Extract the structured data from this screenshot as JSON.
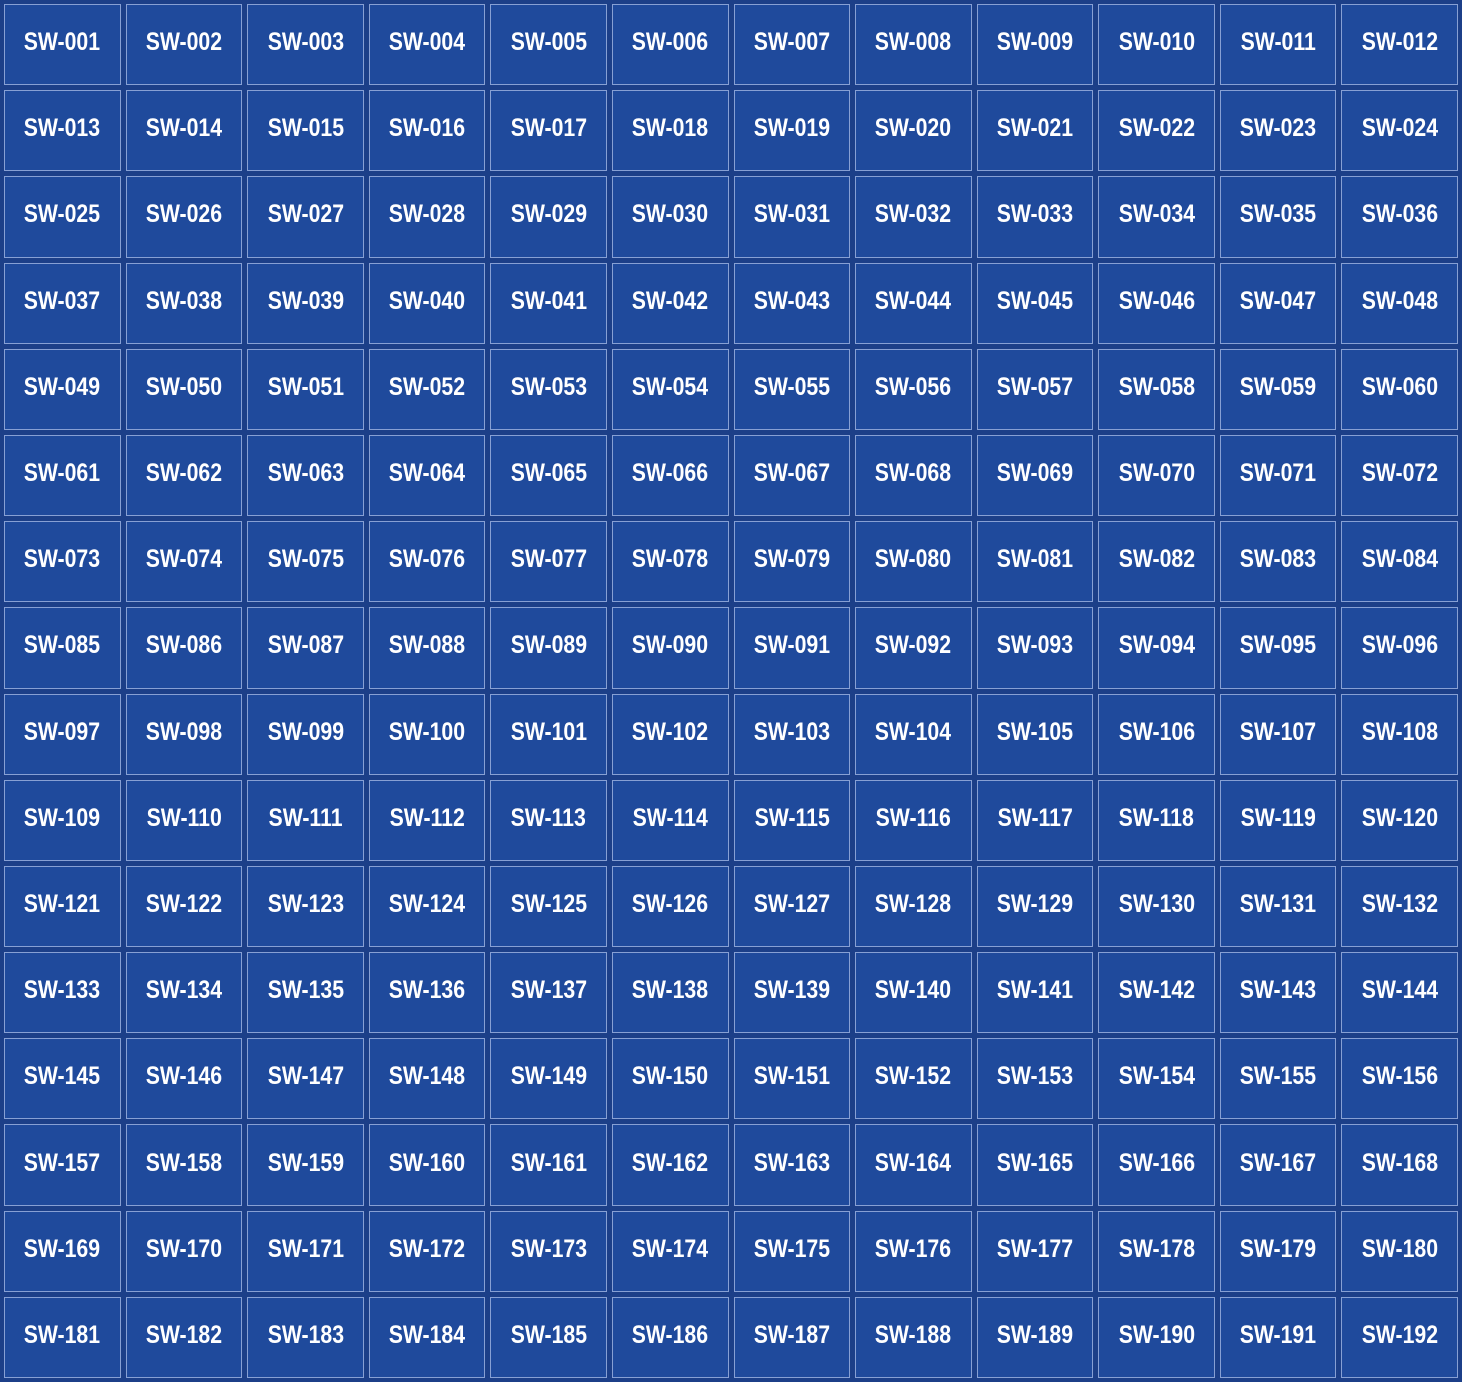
{
  "grid": {
    "columns": 12,
    "rows": 16,
    "cells": [
      "SW-001",
      "SW-002",
      "SW-003",
      "SW-004",
      "SW-005",
      "SW-006",
      "SW-007",
      "SW-008",
      "SW-009",
      "SW-010",
      "SW-011",
      "SW-012",
      "SW-013",
      "SW-014",
      "SW-015",
      "SW-016",
      "SW-017",
      "SW-018",
      "SW-019",
      "SW-020",
      "SW-021",
      "SW-022",
      "SW-023",
      "SW-024",
      "SW-025",
      "SW-026",
      "SW-027",
      "SW-028",
      "SW-029",
      "SW-030",
      "SW-031",
      "SW-032",
      "SW-033",
      "SW-034",
      "SW-035",
      "SW-036",
      "SW-037",
      "SW-038",
      "SW-039",
      "SW-040",
      "SW-041",
      "SW-042",
      "SW-043",
      "SW-044",
      "SW-045",
      "SW-046",
      "SW-047",
      "SW-048",
      "SW-049",
      "SW-050",
      "SW-051",
      "SW-052",
      "SW-053",
      "SW-054",
      "SW-055",
      "SW-056",
      "SW-057",
      "SW-058",
      "SW-059",
      "SW-060",
      "SW-061",
      "SW-062",
      "SW-063",
      "SW-064",
      "SW-065",
      "SW-066",
      "SW-067",
      "SW-068",
      "SW-069",
      "SW-070",
      "SW-071",
      "SW-072",
      "SW-073",
      "SW-074",
      "SW-075",
      "SW-076",
      "SW-077",
      "SW-078",
      "SW-079",
      "SW-080",
      "SW-081",
      "SW-082",
      "SW-083",
      "SW-084",
      "SW-085",
      "SW-086",
      "SW-087",
      "SW-088",
      "SW-089",
      "SW-090",
      "SW-091",
      "SW-092",
      "SW-093",
      "SW-094",
      "SW-095",
      "SW-096",
      "SW-097",
      "SW-098",
      "SW-099",
      "SW-100",
      "SW-101",
      "SW-102",
      "SW-103",
      "SW-104",
      "SW-105",
      "SW-106",
      "SW-107",
      "SW-108",
      "SW-109",
      "SW-110",
      "SW-111",
      "SW-112",
      "SW-113",
      "SW-114",
      "SW-115",
      "SW-116",
      "SW-117",
      "SW-118",
      "SW-119",
      "SW-120",
      "SW-121",
      "SW-122",
      "SW-123",
      "SW-124",
      "SW-125",
      "SW-126",
      "SW-127",
      "SW-128",
      "SW-129",
      "SW-130",
      "SW-131",
      "SW-132",
      "SW-133",
      "SW-134",
      "SW-135",
      "SW-136",
      "SW-137",
      "SW-138",
      "SW-139",
      "SW-140",
      "SW-141",
      "SW-142",
      "SW-143",
      "SW-144",
      "SW-145",
      "SW-146",
      "SW-147",
      "SW-148",
      "SW-149",
      "SW-150",
      "SW-151",
      "SW-152",
      "SW-153",
      "SW-154",
      "SW-155",
      "SW-156",
      "SW-157",
      "SW-158",
      "SW-159",
      "SW-160",
      "SW-161",
      "SW-162",
      "SW-163",
      "SW-164",
      "SW-165",
      "SW-166",
      "SW-167",
      "SW-168",
      "SW-169",
      "SW-170",
      "SW-171",
      "SW-172",
      "SW-173",
      "SW-174",
      "SW-175",
      "SW-176",
      "SW-177",
      "SW-178",
      "SW-179",
      "SW-180",
      "SW-181",
      "SW-182",
      "SW-183",
      "SW-184",
      "SW-185",
      "SW-186",
      "SW-187",
      "SW-188",
      "SW-189",
      "SW-190",
      "SW-191",
      "SW-192"
    ]
  },
  "colors": {
    "page_background": "#1c3f88",
    "cell_fill": "#1f4a9c",
    "cell_border": "#87a0d4",
    "cell_text": "#ffffff"
  }
}
